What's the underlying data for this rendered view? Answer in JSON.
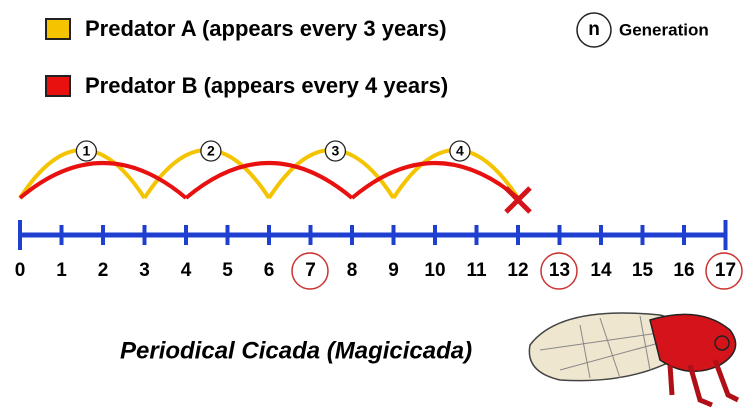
{
  "legend": [
    {
      "label": "Predator A (appears every 3 years)",
      "color": "#f5c400"
    },
    {
      "label": "Predator B (appears every 4 years)",
      "color": "#e8110f"
    }
  ],
  "generation_key": {
    "symbol": "n",
    "label": "Generation"
  },
  "generations": [
    "1",
    "2",
    "3",
    "4"
  ],
  "number_line": {
    "labels": [
      "0",
      "1",
      "2",
      "3",
      "4",
      "5",
      "6",
      "7",
      "8",
      "9",
      "10",
      "11",
      "12",
      "13",
      "14",
      "15",
      "16",
      "17"
    ]
  },
  "caption": "Periodical Cicada (Magicicada)"
}
